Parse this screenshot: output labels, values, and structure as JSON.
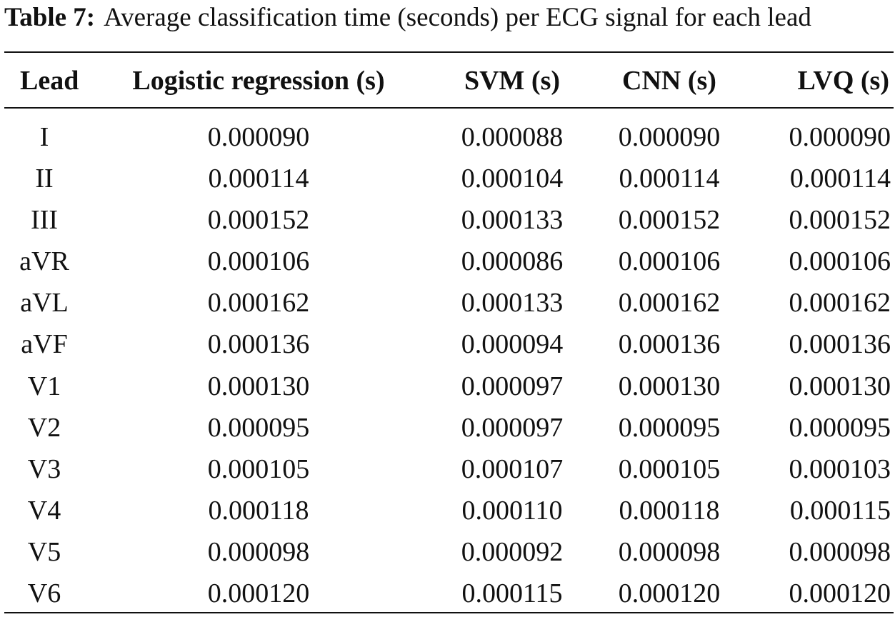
{
  "caption": {
    "label": "Table 7:",
    "text": "Average classification time (seconds) per ECG signal for each lead"
  },
  "table": {
    "headers": [
      "Lead",
      "Logistic regression (s)",
      "SVM (s)",
      "CNN (s)",
      "LVQ (s)"
    ],
    "rows": [
      [
        "I",
        "0.000090",
        "0.000088",
        "0.000090",
        "0.000090"
      ],
      [
        "II",
        "0.000114",
        "0.000104",
        "0.000114",
        "0.000114"
      ],
      [
        "III",
        "0.000152",
        "0.000133",
        "0.000152",
        "0.000152"
      ],
      [
        "aVR",
        "0.000106",
        "0.000086",
        "0.000106",
        "0.000106"
      ],
      [
        "aVL",
        "0.000162",
        "0.000133",
        "0.000162",
        "0.000162"
      ],
      [
        "aVF",
        "0.000136",
        "0.000094",
        "0.000136",
        "0.000136"
      ],
      [
        "V1",
        "0.000130",
        "0.000097",
        "0.000130",
        "0.000130"
      ],
      [
        "V2",
        "0.000095",
        "0.000097",
        "0.000095",
        "0.000095"
      ],
      [
        "V3",
        "0.000105",
        "0.000107",
        "0.000105",
        "0.000103"
      ],
      [
        "V4",
        "0.000118",
        "0.000110",
        "0.000118",
        "0.000115"
      ],
      [
        "V5",
        "0.000098",
        "0.000092",
        "0.000098",
        "0.000098"
      ],
      [
        "V6",
        "0.000120",
        "0.000115",
        "0.000120",
        "0.000120"
      ]
    ]
  }
}
